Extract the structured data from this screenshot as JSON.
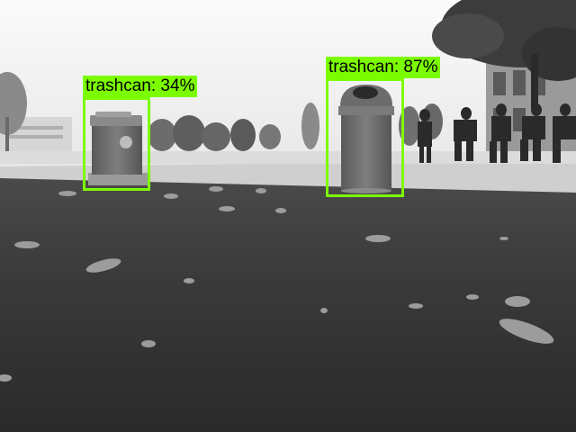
{
  "image": {
    "style": "grayscale",
    "scene": "campus lawn with two trash cans, trees, buildings and people in background"
  },
  "detections": [
    {
      "label": "trashcan: 34%"
    },
    {
      "label": "trashcan: 87%"
    }
  ],
  "colors": {
    "box": "#7CFC00",
    "label_bg": "#7CFC00",
    "label_text": "#000000"
  }
}
